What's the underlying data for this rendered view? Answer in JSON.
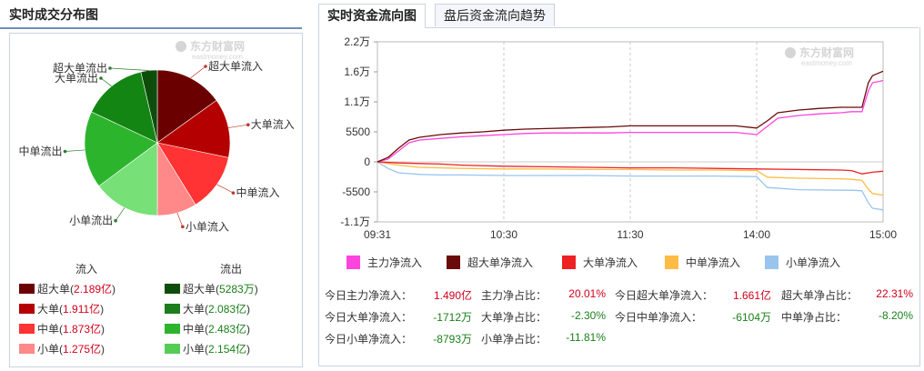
{
  "left_panel": {
    "title": "实时成交分布图",
    "watermark": {
      "brand": "东方财富网",
      "sub": "eastmoney.com"
    },
    "legend": {
      "inflow_header": "流入",
      "outflow_header": "流出",
      "inflow": [
        {
          "label": "超大单",
          "value": "2.189亿",
          "color": "#6b0000"
        },
        {
          "label": "大单",
          "value": "1.911亿",
          "color": "#b40000"
        },
        {
          "label": "中单",
          "value": "1.873亿",
          "color": "#ff3333"
        },
        {
          "label": "小单",
          "value": "1.275亿",
          "color": "#ff8888"
        }
      ],
      "outflow": [
        {
          "label": "超大单",
          "value": "5283万",
          "color": "#0c4d0c"
        },
        {
          "label": "大单",
          "value": "2.083亿",
          "color": "#1c7d1c"
        },
        {
          "label": "中单",
          "value": "2.483亿",
          "color": "#2db42d"
        },
        {
          "label": "小单",
          "value": "2.154亿",
          "color": "#55cc55"
        }
      ]
    }
  },
  "pie_chart_data": {
    "type": "pie",
    "slices": [
      {
        "label": "超大单流入",
        "value": 2.189,
        "color": "#6b0000"
      },
      {
        "label": "大单流入",
        "value": 1.911,
        "color": "#b40000"
      },
      {
        "label": "中单流入",
        "value": 1.873,
        "color": "#ff3333"
      },
      {
        "label": "小单流入",
        "value": 1.275,
        "color": "#ff8888"
      },
      {
        "label": "小单流出",
        "value": 2.154,
        "color": "#77e077"
      },
      {
        "label": "中单流出",
        "value": 2.483,
        "color": "#2db42d"
      },
      {
        "label": "大单流出",
        "value": 2.083,
        "color": "#138513"
      },
      {
        "label": "超大单流出",
        "value": 0.5283,
        "color": "#0c4d0c"
      }
    ]
  },
  "right_panel": {
    "tabs": [
      {
        "label": "实时资金流向图",
        "active": true
      },
      {
        "label": "盘后资金流向趋势",
        "active": false
      }
    ],
    "watermark": {
      "brand": "东方财富网",
      "sub": "eastmoney.com"
    },
    "series_legend": [
      {
        "label": "主力净流入",
        "color": "#ff44dd"
      },
      {
        "label": "超大单净流入",
        "color": "#6b0a0a"
      },
      {
        "label": "大单净流入",
        "color": "#ee2222"
      },
      {
        "label": "中单净流入",
        "color": "#ffbb44"
      },
      {
        "label": "小单净流入",
        "color": "#99c4ee"
      }
    ],
    "stats": [
      {
        "label": "今日主力净流入：",
        "value": "1.490亿",
        "color": "#d0021b"
      },
      {
        "label": "主力净占比：",
        "value": "20.01%",
        "color": "#d0021b"
      },
      {
        "label": "今日超大单净流入：",
        "value": "1.661亿",
        "color": "#d0021b"
      },
      {
        "label": "超大单净占比：",
        "value": "22.31%",
        "color": "#d0021b"
      },
      {
        "label": "今日大单净流入：",
        "value": "-1712万",
        "color": "#1a7f1a"
      },
      {
        "label": "大单净占比：",
        "value": "-2.30%",
        "color": "#1a7f1a"
      },
      {
        "label": "今日中单净流入：",
        "value": "-6104万",
        "color": "#1a7f1a"
      },
      {
        "label": "中单净占比：",
        "value": "-8.20%",
        "color": "#1a7f1a"
      },
      {
        "label": "今日小单净流入：",
        "value": "-8793万",
        "color": "#1a7f1a"
      },
      {
        "label": "小单净占比：",
        "value": "-11.81%",
        "color": "#1a7f1a"
      }
    ]
  },
  "chart_data": {
    "type": "line",
    "y_tick_labels": [
      "2.2万",
      "1.6万",
      "1.1万",
      "5500",
      "0",
      "-5500",
      "-1.1万"
    ],
    "y_tick_values": [
      22000,
      16500,
      11000,
      5500,
      0,
      -5500,
      -11000
    ],
    "ylim": [
      -11000,
      22000
    ],
    "x_tick_labels": [
      "09:31",
      "10:30",
      "11:30",
      "14:00",
      "15:00"
    ],
    "x_tick_values": [
      0,
      60,
      120,
      180,
      240
    ],
    "xlim": [
      0,
      240
    ],
    "series": [
      {
        "name": "主力净流入",
        "color": "#ff44dd",
        "x": [
          0,
          5,
          10,
          15,
          20,
          30,
          40,
          50,
          60,
          70,
          80,
          90,
          100,
          110,
          120,
          130,
          140,
          150,
          160,
          170,
          180,
          185,
          190,
          200,
          210,
          220,
          225,
          230,
          233,
          235,
          240
        ],
        "y": [
          0,
          500,
          2000,
          3500,
          4000,
          4300,
          4600,
          4800,
          5000,
          5200,
          5300,
          5300,
          5300,
          5300,
          5400,
          5400,
          5400,
          5400,
          5400,
          5400,
          5000,
          6500,
          8000,
          8500,
          8800,
          9000,
          9200,
          9200,
          13000,
          14500,
          14900
        ]
      },
      {
        "name": "超大单净流入",
        "color": "#6b0a0a",
        "x": [
          0,
          5,
          10,
          15,
          20,
          30,
          40,
          50,
          60,
          70,
          80,
          90,
          100,
          110,
          120,
          130,
          140,
          150,
          160,
          170,
          180,
          185,
          190,
          200,
          210,
          220,
          225,
          230,
          233,
          235,
          240
        ],
        "y": [
          0,
          800,
          2500,
          4000,
          4500,
          5000,
          5300,
          5500,
          5800,
          6000,
          6100,
          6200,
          6300,
          6400,
          6600,
          6600,
          6600,
          6600,
          6600,
          6600,
          6200,
          7500,
          9000,
          9500,
          9800,
          10000,
          10000,
          10000,
          14500,
          15800,
          16610
        ]
      },
      {
        "name": "大单净流入",
        "color": "#ee2222",
        "x": [
          0,
          10,
          20,
          30,
          40,
          60,
          80,
          100,
          120,
          140,
          160,
          180,
          200,
          220,
          225,
          230,
          235,
          240
        ],
        "y": [
          0,
          -200,
          -300,
          -400,
          -600,
          -800,
          -900,
          -1000,
          -1100,
          -1100,
          -1200,
          -1300,
          -1400,
          -1500,
          -1600,
          -2200,
          -1900,
          -1712
        ]
      },
      {
        "name": "中单净流入",
        "color": "#ffbb44",
        "x": [
          0,
          10,
          20,
          30,
          40,
          60,
          80,
          100,
          120,
          140,
          160,
          180,
          185,
          200,
          220,
          225,
          230,
          233,
          235,
          240
        ],
        "y": [
          0,
          -600,
          -1000,
          -1100,
          -1200,
          -1300,
          -1300,
          -1400,
          -1400,
          -1500,
          -1500,
          -1600,
          -2800,
          -3000,
          -3100,
          -3200,
          -3400,
          -5000,
          -5800,
          -6104
        ]
      },
      {
        "name": "小单净流入",
        "color": "#99c4ee",
        "x": [
          0,
          5,
          10,
          20,
          30,
          40,
          60,
          80,
          100,
          120,
          140,
          160,
          180,
          185,
          200,
          220,
          225,
          230,
          233,
          235,
          240
        ],
        "y": [
          0,
          -1200,
          -2000,
          -2300,
          -2400,
          -2400,
          -2500,
          -2500,
          -2500,
          -2600,
          -2600,
          -2600,
          -2700,
          -4700,
          -5100,
          -5200,
          -5200,
          -5300,
          -7500,
          -8500,
          -8793
        ]
      }
    ]
  }
}
